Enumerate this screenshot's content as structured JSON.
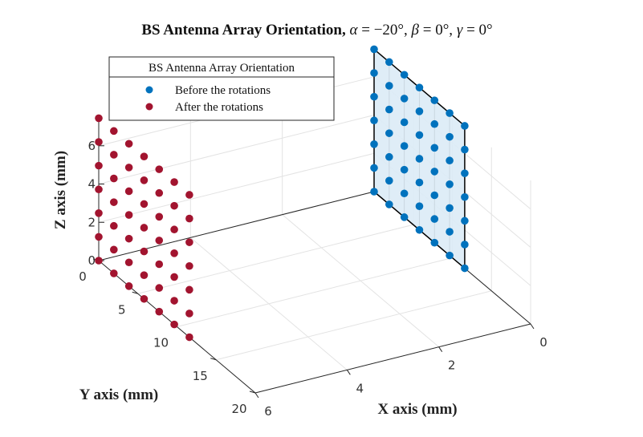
{
  "chart_data": {
    "type": "scatter",
    "title": {
      "lead": "BS Antenna Array Orientation, ",
      "alpha_sym": "α",
      "alpha_val": " = −20°, ",
      "beta_sym": "β",
      "beta_val": " = 0°, ",
      "gamma_sym": "γ",
      "gamma_val": " = 0°"
    },
    "xlabel": "X axis (mm)",
    "ylabel": "Y axis (mm)",
    "zlabel": "Z axis (mm)",
    "xlim": [
      0,
      6
    ],
    "ylim": [
      0,
      20
    ],
    "zlim": [
      0,
      7.5
    ],
    "x_ticks": [
      "0",
      "2",
      "4",
      "6"
    ],
    "y_ticks": [
      "0",
      "5",
      "10",
      "15",
      "20"
    ],
    "z_ticks": [
      "0",
      "2",
      "4",
      "6"
    ],
    "grid": true,
    "legend": {
      "title": "BS Antenna Array Orientation",
      "placement": "top-left",
      "entries": [
        "Before the rotations",
        "After the rotations"
      ]
    },
    "array_elements": {
      "rows_z": 7,
      "cols_y": 7,
      "z_spacing": 1.24,
      "y_spacing": 1.93
    },
    "series": [
      {
        "name": "Before the rotations",
        "color": "#0072BD",
        "x": 0
      },
      {
        "name": "After the rotations",
        "color": "#A2142F",
        "x": 6
      }
    ],
    "plane_fill_color": "#DCEBF6"
  }
}
